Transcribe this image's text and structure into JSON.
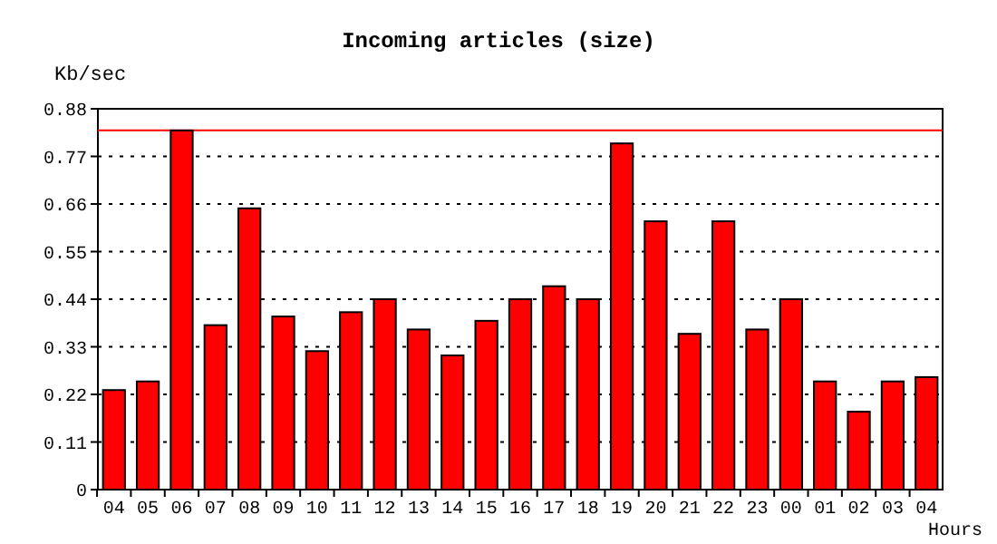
{
  "chart_data": {
    "type": "bar",
    "title": "Incoming articles (size)",
    "ylabel": "Kb/sec",
    "xlabel": "Hours",
    "categories": [
      "04",
      "05",
      "06",
      "07",
      "08",
      "09",
      "10",
      "11",
      "12",
      "13",
      "14",
      "15",
      "16",
      "17",
      "18",
      "19",
      "20",
      "21",
      "22",
      "23",
      "00",
      "01",
      "02",
      "03",
      "04"
    ],
    "values": [
      0.23,
      0.25,
      0.83,
      0.38,
      0.65,
      0.4,
      0.32,
      0.41,
      0.44,
      0.37,
      0.31,
      0.39,
      0.44,
      0.47,
      0.44,
      0.8,
      0.62,
      0.36,
      0.62,
      0.37,
      0.44,
      0.25,
      0.18,
      0.25,
      0.26
    ],
    "color": "#ff0000",
    "ylim": [
      0,
      0.88
    ],
    "yticks": [
      0,
      0.11,
      0.22,
      0.33,
      0.44,
      0.55,
      0.66,
      0.77,
      0.88
    ],
    "grid": "y",
    "line_style": "dotted",
    "ref_lines": [
      {
        "axis": "y",
        "value": 0.83,
        "color": "#ff0000"
      }
    ]
  }
}
